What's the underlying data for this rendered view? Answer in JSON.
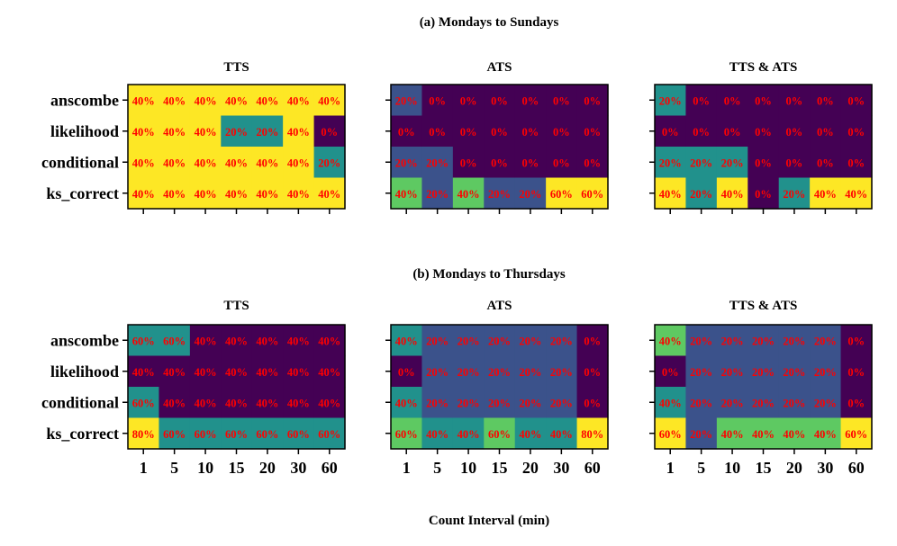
{
  "figure": {
    "xlabel": "Count Interval (min)"
  },
  "colors": {
    "v0": "#440154",
    "v20": "#3b528b",
    "v40": "#21918c",
    "v60": "#5ec962",
    "v80": "#fde725",
    "label": "#ff0000"
  },
  "chart_data": [
    {
      "type": "heatmap",
      "section_title": "(a) Mondays to Sundays",
      "x": [
        "1",
        "5",
        "10",
        "15",
        "20",
        "30",
        "60"
      ],
      "y": [
        "anscombe",
        "likelihood",
        "conditional",
        "ks_correct"
      ],
      "panels": [
        {
          "title": "TTS",
          "values": [
            [
              40,
              40,
              40,
              40,
              40,
              40,
              40
            ],
            [
              40,
              40,
              40,
              20,
              20,
              40,
              0
            ],
            [
              40,
              40,
              40,
              40,
              40,
              40,
              20
            ],
            [
              40,
              40,
              40,
              40,
              40,
              40,
              40
            ]
          ],
          "color_levels": [
            [
              80,
              80,
              80,
              80,
              80,
              80,
              80
            ],
            [
              80,
              80,
              80,
              40,
              40,
              80,
              0
            ],
            [
              80,
              80,
              80,
              80,
              80,
              80,
              40
            ],
            [
              80,
              80,
              80,
              80,
              80,
              80,
              80
            ]
          ]
        },
        {
          "title": "ATS",
          "values": [
            [
              20,
              0,
              0,
              0,
              0,
              0,
              0
            ],
            [
              0,
              0,
              0,
              0,
              0,
              0,
              0
            ],
            [
              20,
              20,
              0,
              0,
              0,
              0,
              0
            ],
            [
              40,
              20,
              40,
              20,
              20,
              60,
              60
            ]
          ],
          "color_levels": [
            [
              20,
              0,
              0,
              0,
              0,
              0,
              0
            ],
            [
              0,
              0,
              0,
              0,
              0,
              0,
              0
            ],
            [
              20,
              20,
              0,
              0,
              0,
              0,
              0
            ],
            [
              60,
              20,
              60,
              20,
              20,
              80,
              80
            ]
          ]
        },
        {
          "title": "TTS & ATS",
          "values": [
            [
              20,
              0,
              0,
              0,
              0,
              0,
              0
            ],
            [
              0,
              0,
              0,
              0,
              0,
              0,
              0
            ],
            [
              20,
              20,
              20,
              0,
              0,
              0,
              0
            ],
            [
              40,
              20,
              40,
              0,
              20,
              40,
              40
            ]
          ],
          "color_levels": [
            [
              40,
              0,
              0,
              0,
              0,
              0,
              0
            ],
            [
              0,
              0,
              0,
              0,
              0,
              0,
              0
            ],
            [
              40,
              40,
              40,
              0,
              0,
              0,
              0
            ],
            [
              80,
              40,
              80,
              0,
              40,
              80,
              80
            ]
          ]
        }
      ]
    },
    {
      "type": "heatmap",
      "section_title": "(b) Mondays to Thursdays",
      "x": [
        "1",
        "5",
        "10",
        "15",
        "20",
        "30",
        "60"
      ],
      "y": [
        "anscombe",
        "likelihood",
        "conditional",
        "ks_correct"
      ],
      "panels": [
        {
          "title": "TTS",
          "values": [
            [
              60,
              60,
              40,
              40,
              40,
              40,
              40
            ],
            [
              40,
              40,
              40,
              40,
              40,
              40,
              40
            ],
            [
              60,
              40,
              40,
              40,
              40,
              40,
              40
            ],
            [
              80,
              60,
              60,
              60,
              60,
              60,
              60
            ]
          ],
          "color_levels": [
            [
              40,
              40,
              0,
              0,
              0,
              0,
              0
            ],
            [
              0,
              0,
              0,
              0,
              0,
              0,
              0
            ],
            [
              40,
              0,
              0,
              0,
              0,
              0,
              0
            ],
            [
              80,
              40,
              40,
              40,
              40,
              40,
              40
            ]
          ]
        },
        {
          "title": "ATS",
          "values": [
            [
              40,
              20,
              20,
              20,
              20,
              20,
              0
            ],
            [
              0,
              20,
              20,
              20,
              20,
              20,
              0
            ],
            [
              40,
              20,
              20,
              20,
              20,
              20,
              0
            ],
            [
              60,
              40,
              40,
              60,
              40,
              40,
              80
            ]
          ],
          "color_levels": [
            [
              40,
              20,
              20,
              20,
              20,
              20,
              0
            ],
            [
              0,
              20,
              20,
              20,
              20,
              20,
              0
            ],
            [
              40,
              20,
              20,
              20,
              20,
              20,
              0
            ],
            [
              60,
              40,
              40,
              60,
              40,
              40,
              80
            ]
          ]
        },
        {
          "title": "TTS & ATS",
          "values": [
            [
              40,
              20,
              20,
              20,
              20,
              20,
              0
            ],
            [
              0,
              20,
              20,
              20,
              20,
              20,
              0
            ],
            [
              40,
              20,
              20,
              20,
              20,
              20,
              0
            ],
            [
              60,
              20,
              40,
              40,
              40,
              40,
              60
            ]
          ],
          "color_levels": [
            [
              60,
              20,
              20,
              20,
              20,
              20,
              0
            ],
            [
              0,
              20,
              20,
              20,
              20,
              20,
              0
            ],
            [
              40,
              20,
              20,
              20,
              20,
              20,
              0
            ],
            [
              80,
              20,
              60,
              60,
              60,
              60,
              80
            ]
          ]
        }
      ]
    }
  ]
}
